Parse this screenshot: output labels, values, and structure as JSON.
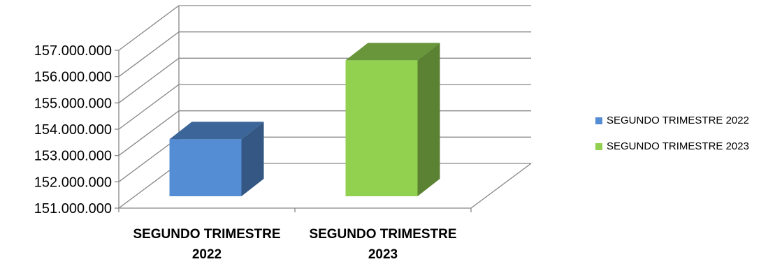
{
  "chart_data": {
    "type": "bar",
    "categories": [
      "SEGUNDO TRIMESTRE 2022",
      "SEGUNDO TRIMESTRE 2023"
    ],
    "category_lines": [
      [
        "SEGUNDO TRIMESTRE",
        "2022"
      ],
      [
        "SEGUNDO TRIMESTRE",
        "2023"
      ]
    ],
    "series": [
      {
        "name": "SEGUNDO TRIMESTRE 2022",
        "color": "#548DD4",
        "values": [
          153300000,
          null
        ]
      },
      {
        "name": "SEGUNDO TRIMESTRE 2023",
        "color": "#92D050",
        "values": [
          null,
          156300000
        ]
      }
    ],
    "ylim": [
      151000000,
      157000000
    ],
    "yticks": [
      151000000,
      152000000,
      153000000,
      154000000,
      155000000,
      156000000,
      157000000
    ],
    "ytick_labels": [
      "151.000.000",
      "152.000.000",
      "153.000.000",
      "154.000.000",
      "155.000.000",
      "156.000.000",
      "157.000.000"
    ],
    "grid": true,
    "style": "3d-column",
    "legend_position": "right"
  }
}
